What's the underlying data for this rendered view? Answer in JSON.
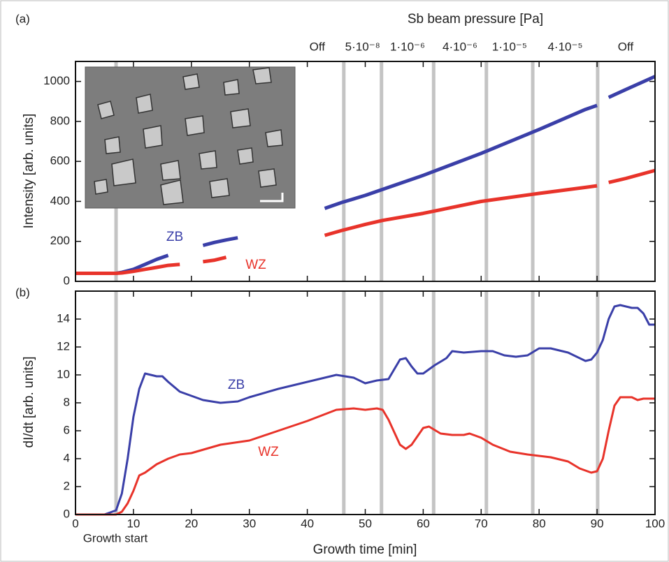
{
  "chart_data": [
    {
      "type": "line",
      "panel_label": "(a)",
      "ylabel": "Intensity [arb. units]",
      "ylim": [
        0,
        1100
      ],
      "yticks": [
        0,
        200,
        400,
        600,
        800,
        1000
      ],
      "xlim": [
        0,
        100
      ],
      "top_axis": {
        "title": "Sb beam pressure [Pa]",
        "labels": [
          "Off",
          "5·10⁻⁸",
          "1·10⁻⁶",
          "4·10⁻⁶",
          "1·10⁻⁵",
          "4·10⁻⁵",
          "Off"
        ]
      },
      "vlines": [
        7,
        46.3,
        52.8,
        61.8,
        70.9,
        78.9,
        90.1
      ],
      "series": [
        {
          "name": "ZB",
          "color": "#3a3fa8",
          "x": [
            0,
            2,
            4,
            6,
            7,
            8,
            10,
            12,
            14,
            16,
            18,
            22,
            24,
            26,
            28,
            30,
            43,
            46,
            50,
            53,
            60,
            70,
            80,
            88,
            90,
            91,
            92,
            95,
            100
          ],
          "values": [
            40,
            40,
            40,
            40,
            40,
            45,
            60,
            85,
            110,
            130,
            null,
            180,
            195,
            207,
            218,
            null,
            365,
            395,
            430,
            460,
            530,
            640,
            760,
            860,
            880,
            null,
            920,
            960,
            1025
          ]
        },
        {
          "name": "WZ",
          "color": "#e8332a",
          "x": [
            0,
            2,
            4,
            6,
            7,
            8,
            10,
            12,
            14,
            16,
            18,
            20,
            22,
            24,
            26,
            30,
            43,
            46,
            50,
            53,
            60,
            70,
            80,
            88,
            90,
            91,
            92,
            95,
            100
          ],
          "values": [
            40,
            40,
            40,
            40,
            40,
            42,
            50,
            60,
            70,
            80,
            85,
            null,
            98,
            106,
            120,
            null,
            230,
            255,
            285,
            305,
            340,
            400,
            440,
            470,
            478,
            null,
            495,
            515,
            555
          ]
        }
      ]
    },
    {
      "type": "line",
      "panel_label": "(b)",
      "ylabel": "dI/dt [arb. units]",
      "xlabel": "Growth time [min]",
      "annotation": "Growth start",
      "xlim": [
        0,
        100
      ],
      "xticks": [
        0,
        10,
        20,
        30,
        40,
        50,
        60,
        70,
        80,
        90,
        100
      ],
      "ylim": [
        0,
        16
      ],
      "yticks": [
        0,
        2,
        4,
        6,
        8,
        10,
        12,
        14
      ],
      "series": [
        {
          "name": "ZB",
          "color": "#3a3fa8",
          "x": [
            0,
            5,
            7,
            8,
            9,
            10,
            11,
            12,
            13,
            14,
            15,
            16,
            18,
            20,
            22,
            25,
            28,
            30,
            35,
            40,
            45,
            48,
            50,
            52,
            54,
            56,
            57,
            58,
            59,
            60,
            62,
            64,
            65,
            67,
            70,
            72,
            74,
            76,
            78,
            80,
            82,
            85,
            88,
            89,
            90,
            91,
            92,
            93,
            94,
            96,
            97,
            98,
            99,
            100
          ],
          "values": [
            0,
            0,
            0.3,
            1.5,
            4,
            7,
            9,
            10.1,
            10,
            9.9,
            9.9,
            9.5,
            8.8,
            8.5,
            8.2,
            8,
            8.1,
            8.4,
            9,
            9.5,
            10,
            9.8,
            9.4,
            9.6,
            9.7,
            11.1,
            11.2,
            10.6,
            10.1,
            10.1,
            10.7,
            11.2,
            11.7,
            11.6,
            11.7,
            11.7,
            11.4,
            11.3,
            11.4,
            11.9,
            11.9,
            11.6,
            11,
            11.1,
            11.6,
            12.5,
            14,
            14.9,
            15,
            14.8,
            14.8,
            14.4,
            13.6,
            13.6
          ]
        },
        {
          "name": "WZ",
          "color": "#e8332a",
          "x": [
            0,
            7,
            8,
            9,
            10,
            11,
            12,
            13,
            14,
            16,
            18,
            20,
            25,
            30,
            35,
            40,
            45,
            48,
            50,
            52,
            53,
            54,
            56,
            57,
            58,
            60,
            61,
            63,
            65,
            67,
            68,
            70,
            72,
            75,
            78,
            80,
            82,
            85,
            87,
            89,
            90,
            91,
            92,
            93,
            94,
            96,
            97,
            98,
            100
          ],
          "values": [
            0,
            0,
            0.2,
            0.8,
            1.7,
            2.8,
            3,
            3.3,
            3.6,
            4,
            4.3,
            4.4,
            5,
            5.3,
            6,
            6.7,
            7.5,
            7.6,
            7.5,
            7.6,
            7.5,
            6.8,
            5,
            4.7,
            5,
            6.2,
            6.3,
            5.8,
            5.7,
            5.7,
            5.8,
            5.5,
            5,
            4.5,
            4.3,
            4.2,
            4.1,
            3.8,
            3.3,
            3,
            3.1,
            4,
            6,
            7.8,
            8.4,
            8.4,
            8.2,
            8.3,
            8.3
          ]
        }
      ]
    }
  ]
}
